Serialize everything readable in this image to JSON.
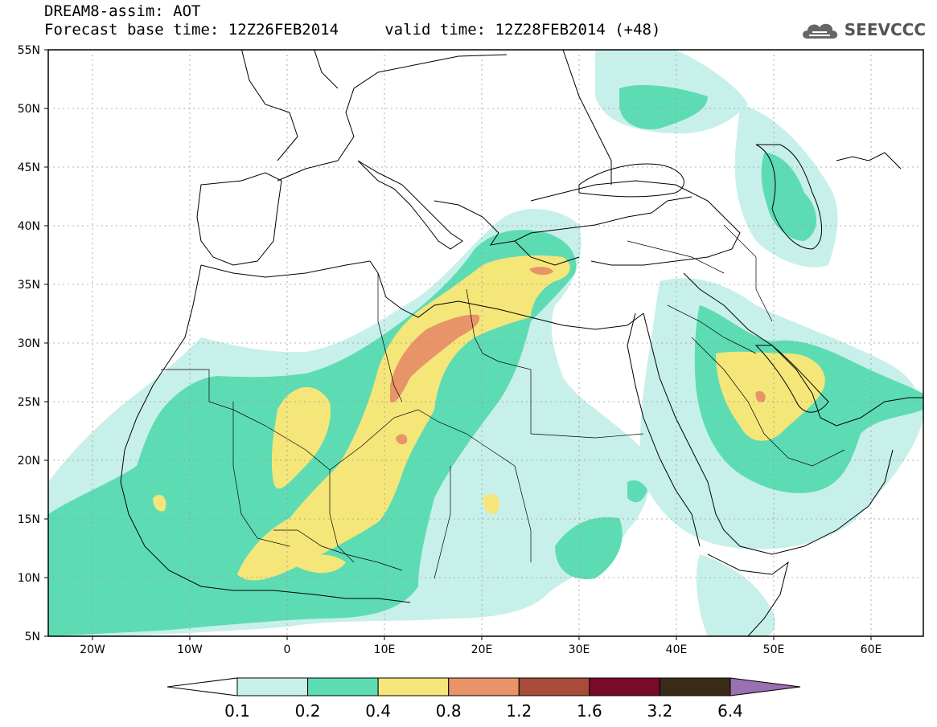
{
  "header": {
    "title_line1": "DREAM8-assim: AOT",
    "title_line2": "Forecast base time: 12Z26FEB2014     valid time: 12Z28FEB2014 (+48)",
    "logo_text": "SEEVCCC",
    "logo_icon": "cloud-icon"
  },
  "map": {
    "lat_labels": [
      "55N",
      "50N",
      "45N",
      "40N",
      "35N",
      "30N",
      "25N",
      "20N",
      "15N",
      "10N",
      "5N"
    ],
    "lon_labels": [
      "20W",
      "10W",
      "0",
      "10E",
      "20E",
      "30E",
      "40E",
      "50E",
      "60E"
    ],
    "gridlines": "dotted"
  },
  "colorbar": {
    "labels": [
      "0.1",
      "0.2",
      "0.4",
      "0.8",
      "1.2",
      "1.6",
      "3.2",
      "6.4"
    ],
    "colors": [
      "#ffffff",
      "#c8f0ea",
      "#5ddcb4",
      "#f5e67a",
      "#e89468",
      "#a84b3a",
      "#7a0a2a",
      "#3a2a18",
      "#9a70b0"
    ]
  }
}
